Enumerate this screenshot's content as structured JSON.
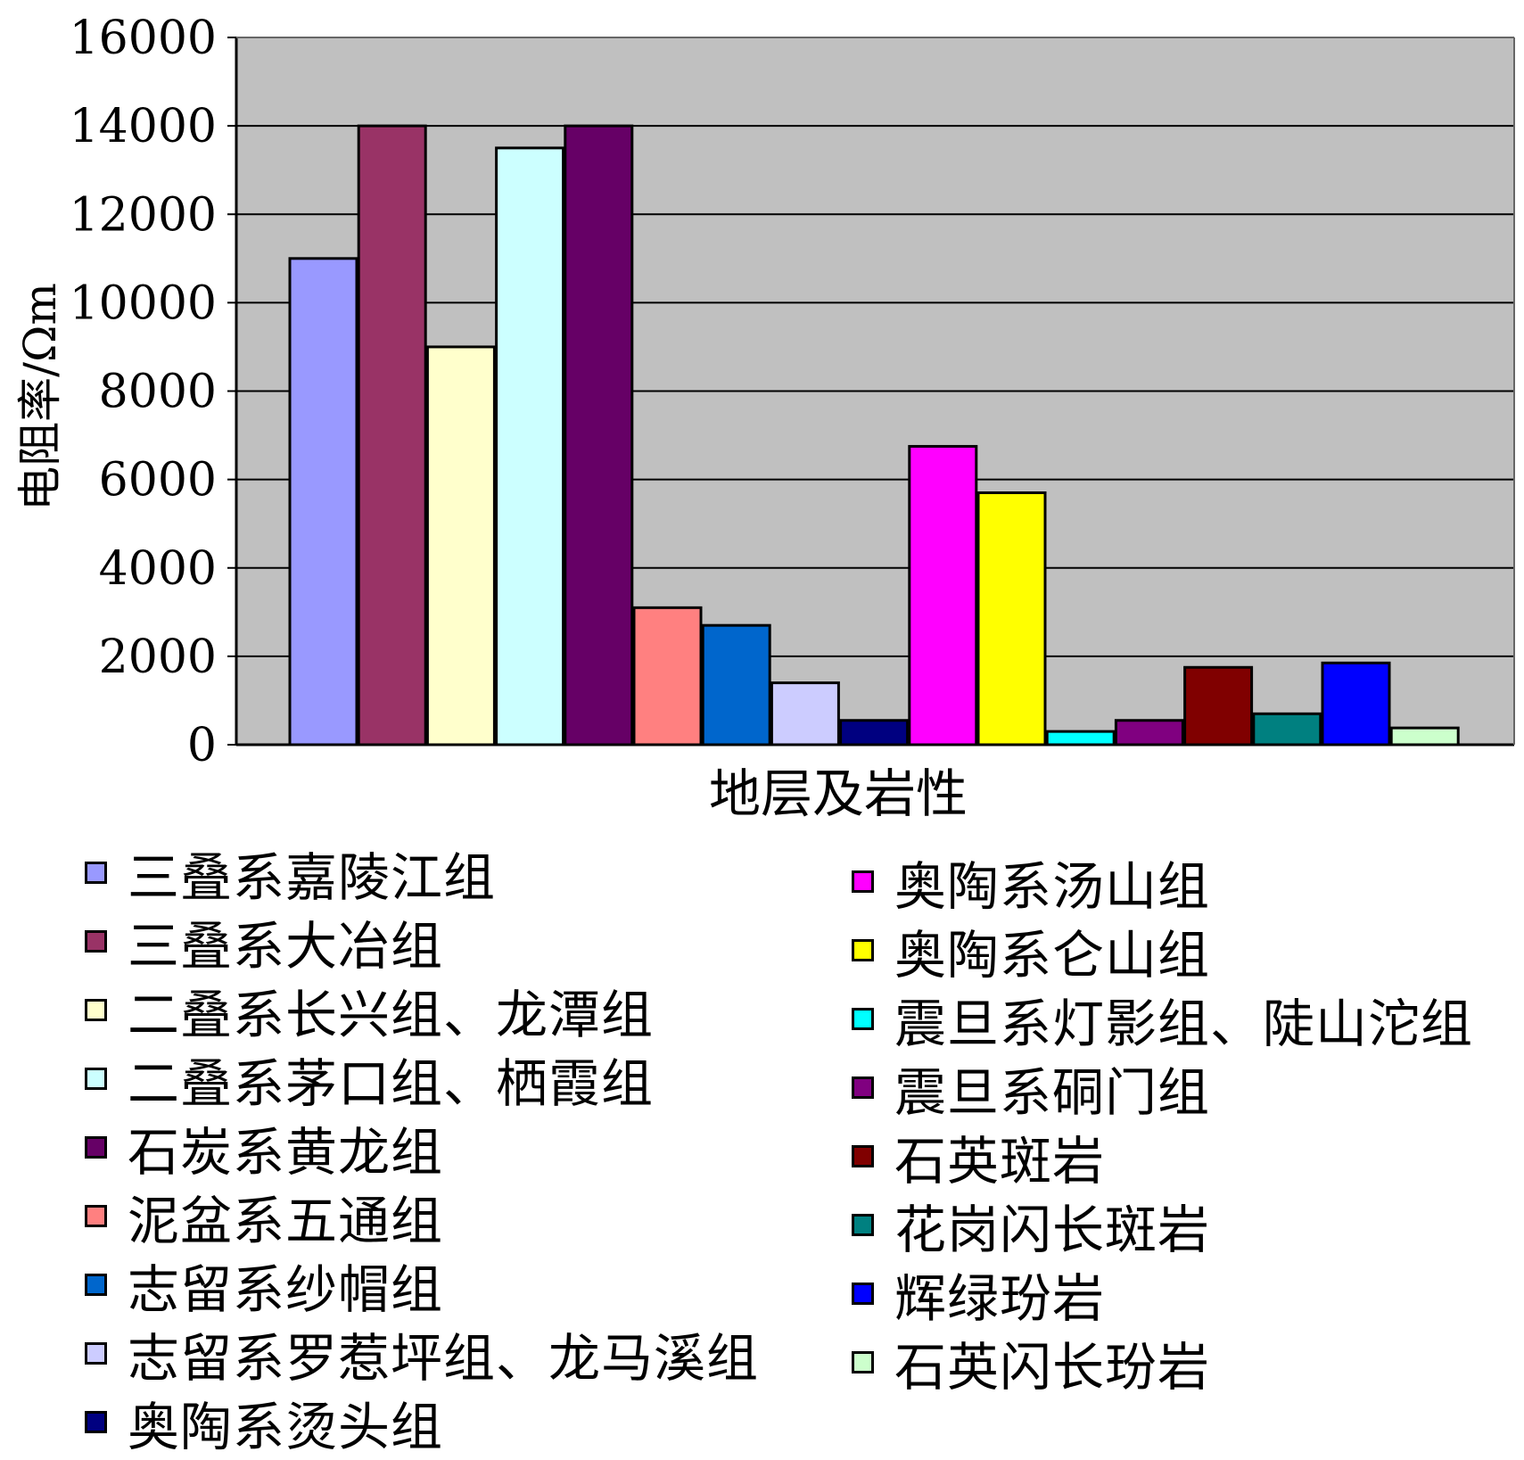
{
  "chart_data": {
    "type": "bar",
    "title": "",
    "xlabel": "地层及岩性",
    "ylabel": "电阻率/Ωm",
    "ylim": [
      0,
      16000
    ],
    "yticks": [
      0,
      2000,
      4000,
      6000,
      8000,
      10000,
      12000,
      14000,
      16000
    ],
    "grid": true,
    "legend_position": "bottom",
    "background": "#c0c0c0",
    "series": [
      {
        "name": "三叠系嘉陵江组",
        "value": 11000,
        "color": "#9999ff"
      },
      {
        "name": "三叠系大冶组",
        "value": 14000,
        "color": "#993366"
      },
      {
        "name": "二叠系长兴组、龙潭组",
        "value": 9000,
        "color": "#ffffcc"
      },
      {
        "name": "二叠系茅口组、栖霞组",
        "value": 13500,
        "color": "#ccffff"
      },
      {
        "name": "石炭系黄龙组",
        "value": 14000,
        "color": "#660066"
      },
      {
        "name": "泥盆系五通组",
        "value": 3100,
        "color": "#ff8080"
      },
      {
        "name": "志留系纱帽组",
        "value": 2700,
        "color": "#0066cc"
      },
      {
        "name": "志留系罗惹坪组、龙马溪组",
        "value": 1400,
        "color": "#ccccff"
      },
      {
        "name": "奥陶系烫头组",
        "value": 550,
        "color": "#000080"
      },
      {
        "name": "奥陶系汤山组",
        "value": 6750,
        "color": "#ff00ff"
      },
      {
        "name": "奥陶系仑山组",
        "value": 5700,
        "color": "#ffff00"
      },
      {
        "name": "震旦系灯影组、陡山沱组",
        "value": 300,
        "color": "#00ffff"
      },
      {
        "name": "震旦系硐门组",
        "value": 550,
        "color": "#800080"
      },
      {
        "name": "石英斑岩",
        "value": 1750,
        "color": "#800000"
      },
      {
        "name": "花岗闪长斑岩",
        "value": 700,
        "color": "#008080"
      },
      {
        "name": "辉绿玢岩",
        "value": 1850,
        "color": "#0000ff"
      },
      {
        "name": "石英闪长玢岩",
        "value": 380,
        "color": "#ccffcc"
      }
    ]
  }
}
